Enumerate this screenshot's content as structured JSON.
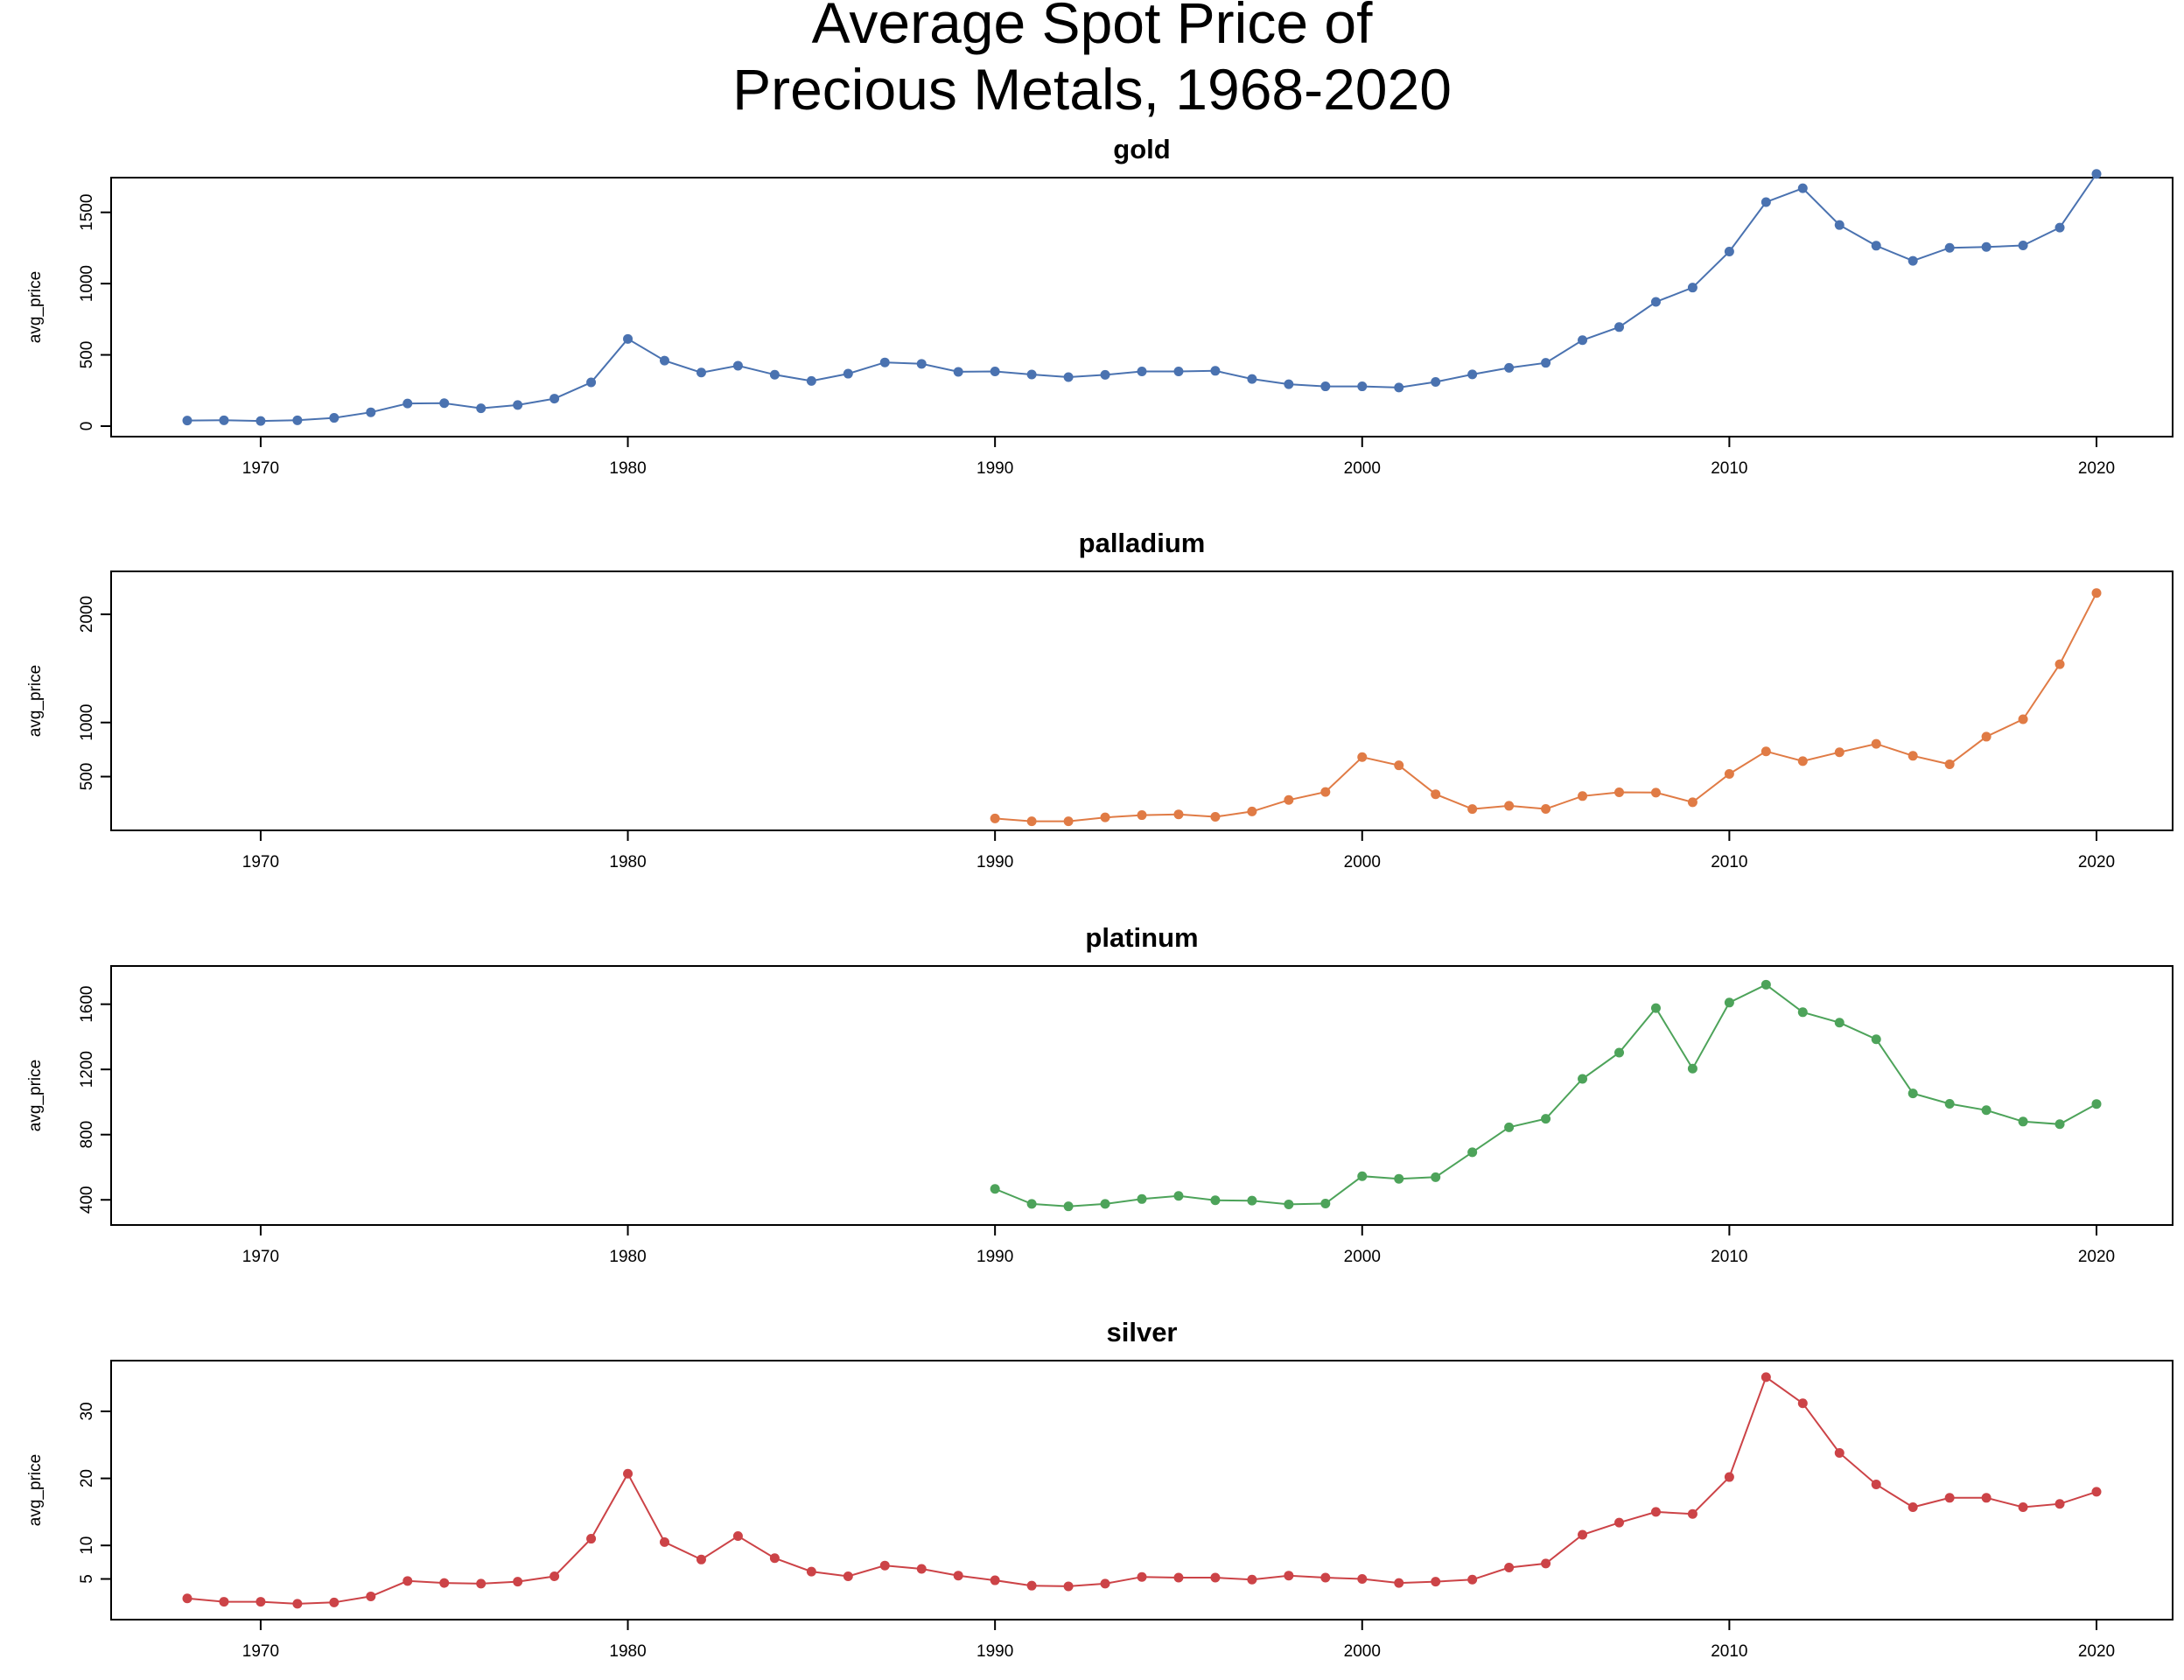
{
  "title_line1": "Average Spot Price of",
  "title_line2": "Precious Metals, 1968-2020",
  "chart_data": {
    "type": "line",
    "title": "Average Spot Price of Precious Metals, 1968-2020",
    "xlabel": "",
    "ylabel": "avg_price",
    "x_ticks": [
      1970,
      1980,
      1990,
      2000,
      2010,
      2020
    ],
    "xlim": [
      1968,
      2020
    ],
    "panels": [
      {
        "name": "gold",
        "color": "#4a72b0",
        "ylim": [
          0,
          1670
        ],
        "y_ticks": [
          0,
          500,
          1000,
          1500
        ],
        "x": [
          1968,
          1969,
          1970,
          1971,
          1972,
          1973,
          1974,
          1975,
          1976,
          1977,
          1978,
          1979,
          1980,
          1981,
          1982,
          1983,
          1984,
          1985,
          1986,
          1987,
          1988,
          1989,
          1990,
          1991,
          1992,
          1993,
          1994,
          1995,
          1996,
          1997,
          1998,
          1999,
          2000,
          2001,
          2002,
          2003,
          2004,
          2005,
          2006,
          2007,
          2008,
          2009,
          2010,
          2011,
          2012,
          2013,
          2014,
          2015,
          2016,
          2017,
          2018,
          2019,
          2020
        ],
        "values": [
          39,
          41,
          36,
          41,
          58,
          97,
          159,
          161,
          125,
          148,
          193,
          307,
          612,
          460,
          376,
          424,
          361,
          317,
          368,
          447,
          437,
          381,
          384,
          362,
          344,
          360,
          384,
          384,
          388,
          331,
          294,
          279,
          279,
          271,
          310,
          363,
          409,
          444,
          603,
          695,
          872,
          972,
          1225,
          1572,
          1669,
          1411,
          1266,
          1160,
          1251,
          1257,
          1268,
          1393,
          1770
        ]
      },
      {
        "name": "palladium",
        "color": "#e07b45",
        "ylim": [
          100,
          2300
        ],
        "y_ticks": [
          500,
          1000,
          2000
        ],
        "x": [
          1990,
          1991,
          1992,
          1993,
          1994,
          1995,
          1996,
          1997,
          1998,
          1999,
          2000,
          2001,
          2002,
          2003,
          2004,
          2005,
          2006,
          2007,
          2008,
          2009,
          2010,
          2011,
          2012,
          2013,
          2014,
          2015,
          2016,
          2017,
          2018,
          2019,
          2020
        ],
        "values": [
          113,
          87,
          87,
          123,
          144,
          151,
          128,
          178,
          284,
          358,
          680,
          604,
          337,
          200,
          230,
          201,
          320,
          355,
          352,
          263,
          525,
          733,
          643,
          725,
          803,
          692,
          614,
          869,
          1030,
          1539,
          2197
        ]
      },
      {
        "name": "platinum",
        "color": "#4da35a",
        "ylim": [
          310,
          1770
        ],
        "y_ticks": [
          400,
          800,
          1200,
          1600
        ],
        "x": [
          1990,
          1991,
          1992,
          1993,
          1994,
          1995,
          1996,
          1997,
          1998,
          1999,
          2000,
          2001,
          2002,
          2003,
          2004,
          2005,
          2006,
          2007,
          2008,
          2009,
          2010,
          2011,
          2012,
          2013,
          2014,
          2015,
          2016,
          2017,
          2018,
          2019,
          2020
        ],
        "values": [
          467,
          375,
          360,
          375,
          405,
          424,
          397,
          395,
          372,
          377,
          545,
          529,
          539,
          692,
          845,
          897,
          1142,
          1303,
          1576,
          1205,
          1610,
          1720,
          1551,
          1487,
          1385,
          1053,
          989,
          950,
          880,
          864,
          988
        ]
      },
      {
        "name": "silver",
        "color": "#cc4347",
        "ylim": [
          0.5,
          36
        ],
        "y_ticks": [
          5,
          10,
          20,
          30
        ],
        "x": [
          1968,
          1969,
          1970,
          1971,
          1972,
          1973,
          1974,
          1975,
          1976,
          1977,
          1978,
          1979,
          1980,
          1981,
          1982,
          1983,
          1984,
          1985,
          1986,
          1987,
          1988,
          1989,
          1990,
          1991,
          1992,
          1993,
          1994,
          1995,
          1996,
          1997,
          1998,
          1999,
          2000,
          2001,
          2002,
          2003,
          2004,
          2005,
          2006,
          2007,
          2008,
          2009,
          2010,
          2011,
          2012,
          2013,
          2014,
          2015,
          2016,
          2017,
          2018,
          2019,
          2020
        ],
        "values": [
          2.1,
          1.6,
          1.6,
          1.3,
          1.5,
          2.4,
          4.7,
          4.4,
          4.3,
          4.6,
          5.4,
          11.0,
          20.7,
          10.5,
          7.9,
          11.4,
          8.1,
          6.1,
          5.4,
          7.0,
          6.5,
          5.5,
          4.8,
          4.0,
          3.9,
          4.3,
          5.3,
          5.2,
          5.2,
          4.9,
          5.5,
          5.2,
          5.0,
          4.4,
          4.6,
          4.9,
          6.7,
          7.3,
          11.6,
          13.4,
          15.0,
          14.7,
          20.2,
          35.1,
          31.2,
          23.8,
          19.1,
          15.7,
          17.1,
          17.1,
          15.7,
          16.2,
          18.0
        ]
      }
    ]
  }
}
